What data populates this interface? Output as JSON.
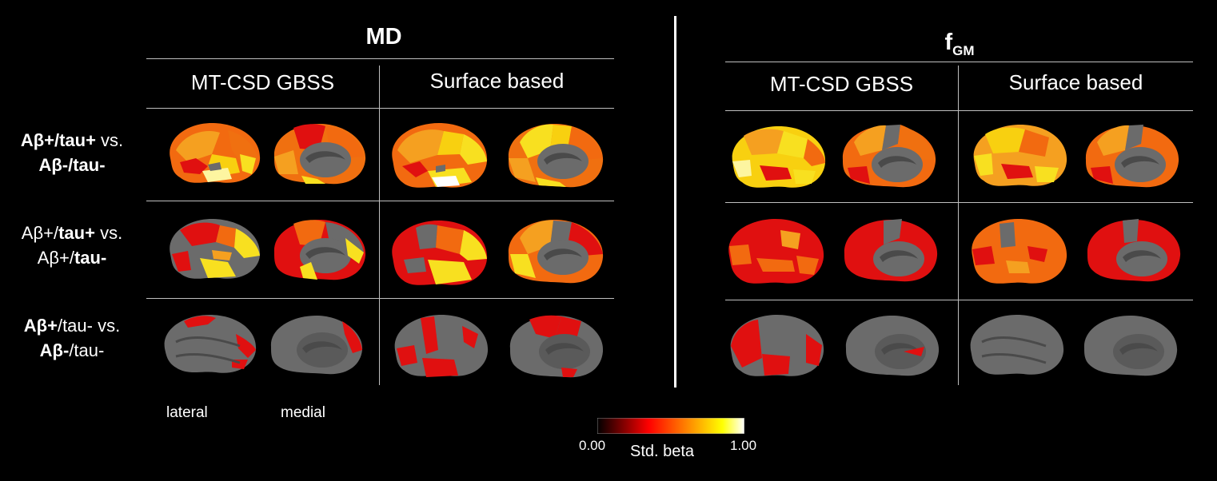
{
  "panels": {
    "md": {
      "title": "MD"
    },
    "fgm": {
      "title": "f",
      "title_sub": "GM"
    }
  },
  "columns": {
    "col1": "MT-CSD GBSS",
    "col2": "Surface based"
  },
  "rows": [
    {
      "l1a": "Aβ+/tau+",
      "l1b": " vs.",
      "l2": "Aβ-/tau-"
    },
    {
      "l1a": "Aβ+/",
      "l1b": "tau+",
      "l1c": " vs.",
      "l2a": "Aβ+/",
      "l2b": "tau-"
    },
    {
      "l1a": "Aβ+",
      "l1b": "/tau- vs.",
      "l2a": "Aβ-",
      "l2b": "/tau-"
    }
  ],
  "views": {
    "lateral": "lateral",
    "medial": "medial"
  },
  "colorbar": {
    "min": "0.00",
    "max": "1.00",
    "label": "Std. beta",
    "colors": [
      "#000000",
      "#ff0000",
      "#ff8000",
      "#ffff00",
      "#ffffff"
    ]
  },
  "brain_colors": {
    "gray": "#6b6b6b",
    "dark": "#4a4a4a",
    "red": "#e01010",
    "orange": "#f26a10",
    "yellow": "#f8e020",
    "light": "#fdf5a0"
  }
}
